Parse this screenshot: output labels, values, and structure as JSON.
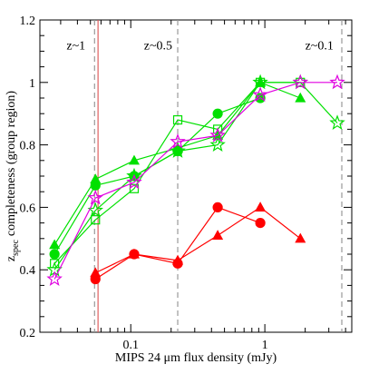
{
  "chart_data": {
    "type": "line",
    "x_label": "MIPS 24 μm flux density (mJy)",
    "y_label": "z",
    "y_label_sub": "spec",
    "y_label_rest": "completeness (group region)",
    "log_x": true,
    "xlim": [
      0.021,
      4.45
    ],
    "ylim": [
      0.2,
      1.2
    ],
    "xticks": [
      0.1,
      1
    ],
    "xticks_minor": [
      0.03,
      0.04,
      0.05,
      0.06,
      0.07,
      0.08,
      0.09,
      0.2,
      0.3,
      0.4,
      0.5,
      0.6,
      0.7,
      0.8,
      0.9,
      2,
      3,
      4
    ],
    "yticks": [
      0.2,
      0.4,
      0.6,
      0.8,
      1,
      1.2
    ],
    "yticks_minor": [
      0.25,
      0.3,
      0.35,
      0.45,
      0.5,
      0.55,
      0.65,
      0.7,
      0.75,
      0.85,
      0.9,
      0.95,
      1.05,
      1.1,
      1.15
    ],
    "vlines": [
      {
        "x": 0.0537,
        "color": "#999999",
        "style": "dashed"
      },
      {
        "x": 0.057,
        "color": "#e06060",
        "style": "solid"
      },
      {
        "x": 0.224,
        "color": "#999999",
        "style": "dashed"
      },
      {
        "x": 3.75,
        "color": "#999999",
        "style": "dashed"
      }
    ],
    "annotations": [
      {
        "text": "z~1",
        "x": 0.039,
        "y": 1.12
      },
      {
        "text": "z~0.5",
        "x": 0.16,
        "y": 1.12
      },
      {
        "text": "z~0.1",
        "x": 2.55,
        "y": 1.12
      }
    ],
    "series": [
      {
        "color": "#00e000",
        "marker": "circle",
        "filled": true,
        "x": [
          0.027,
          0.0545,
          0.106,
          0.224,
          0.445,
          0.925
        ],
        "values": [
          0.45,
          0.67,
          0.7,
          0.78,
          0.9,
          0.95
        ]
      },
      {
        "color": "#00e000",
        "marker": "triangle",
        "filled": true,
        "x": [
          0.027,
          0.0545,
          0.106,
          0.224,
          0.445,
          0.925,
          1.84
        ],
        "values": [
          0.48,
          0.69,
          0.75,
          0.79,
          0.83,
          1.0,
          0.95
        ]
      },
      {
        "color": "#00e000",
        "marker": "square",
        "filled": false,
        "x": [
          0.027,
          0.0545,
          0.106,
          0.224,
          0.445,
          0.925,
          1.84
        ],
        "values": [
          0.42,
          0.56,
          0.66,
          0.88,
          0.85,
          1.0,
          1.0
        ]
      },
      {
        "color": "#00e000",
        "marker": "star",
        "filled": false,
        "x": [
          0.027,
          0.0545,
          0.106,
          0.224,
          0.445,
          0.925,
          1.84,
          3.47
        ],
        "values": [
          0.4,
          0.59,
          0.7,
          0.78,
          0.8,
          1.0,
          1.0,
          0.87
        ]
      },
      {
        "color": "#e000e0",
        "marker": "star",
        "filled": false,
        "x": [
          0.027,
          0.0545,
          0.106,
          0.224,
          0.445,
          0.925,
          1.84,
          3.47
        ],
        "values": [
          0.37,
          0.63,
          0.68,
          0.81,
          0.83,
          0.96,
          1.0,
          1.0
        ]
      },
      {
        "color": "#ff0000",
        "marker": "circle",
        "filled": true,
        "x": [
          0.0545,
          0.106,
          0.224,
          0.445,
          0.925
        ],
        "values": [
          0.37,
          0.45,
          0.42,
          0.6,
          0.55
        ]
      },
      {
        "color": "#ff0000",
        "marker": "triangle",
        "filled": true,
        "x": [
          0.0545,
          0.106,
          0.224,
          0.445,
          0.925,
          1.84
        ],
        "values": [
          0.39,
          0.45,
          0.43,
          0.51,
          0.6,
          0.5
        ]
      }
    ]
  }
}
